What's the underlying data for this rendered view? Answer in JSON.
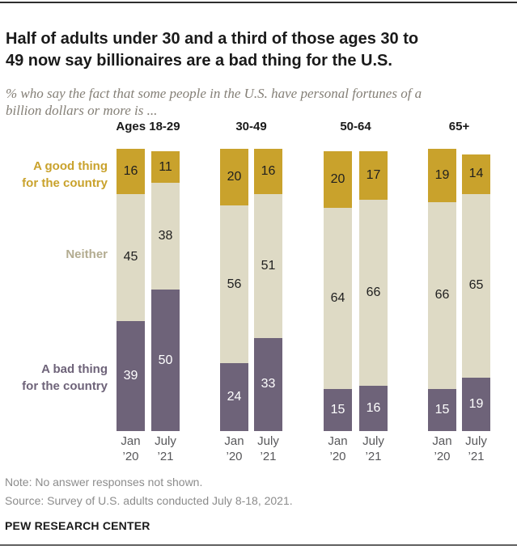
{
  "header": {
    "title_line1": "Half of adults under 30 and a third of those ages 30 to",
    "title_line2": "49 now say billionaires are a bad thing for the U.S.",
    "subtitle_line1": "% who say the fact that some people in the U.S. have personal fortunes of a",
    "subtitle_line2": "billion dollars or more is ..."
  },
  "legend": {
    "good_line1": "A good thing",
    "good_line2": "for the country",
    "neither": "Neither",
    "bad_line1": "A bad thing",
    "bad_line2": "for the country"
  },
  "chart_data": {
    "type": "bar",
    "stacked": true,
    "unit": "%",
    "series_order_top_to_bottom": [
      "A good thing for the country",
      "Neither",
      "A bad thing for the country"
    ],
    "colors": {
      "good": "#C9A22C",
      "neither": "#DEDAC5",
      "bad": "#6E6379"
    },
    "groups": [
      {
        "label": "Ages 18-29",
        "bars": [
          {
            "period_line1": "Jan",
            "period_line2": "’20",
            "good": 16,
            "neither": 45,
            "bad": 39
          },
          {
            "period_line1": "July",
            "period_line2": "’21",
            "good": 11,
            "neither": 38,
            "bad": 50
          }
        ]
      },
      {
        "label": "30-49",
        "bars": [
          {
            "period_line1": "Jan",
            "period_line2": "’20",
            "good": 20,
            "neither": 56,
            "bad": 24
          },
          {
            "period_line1": "July",
            "period_line2": "’21",
            "good": 16,
            "neither": 51,
            "bad": 33
          }
        ]
      },
      {
        "label": "50-64",
        "bars": [
          {
            "period_line1": "Jan",
            "period_line2": "’20",
            "good": 20,
            "neither": 64,
            "bad": 15
          },
          {
            "period_line1": "July",
            "period_line2": "’21",
            "good": 17,
            "neither": 66,
            "bad": 16
          }
        ]
      },
      {
        "label": "65+",
        "bars": [
          {
            "period_line1": "Jan",
            "period_line2": "’20",
            "good": 19,
            "neither": 66,
            "bad": 15
          },
          {
            "period_line1": "July",
            "period_line2": "’21",
            "good": 14,
            "neither": 65,
            "bad": 19
          }
        ]
      }
    ]
  },
  "footer": {
    "note": "Note: No answer responses not shown.",
    "source": "Source: Survey of U.S. adults conducted July 8-18, 2021.",
    "brand": "PEW RESEARCH CENTER"
  }
}
